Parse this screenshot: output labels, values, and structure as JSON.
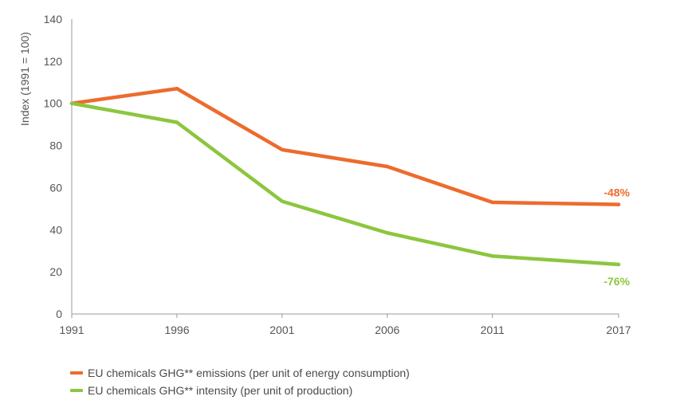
{
  "chart_data": {
    "type": "line",
    "title": "",
    "xlabel": "",
    "ylabel": "Index (1991 = 100)",
    "ylim": [
      0,
      140
    ],
    "yticks": [
      0,
      20,
      40,
      60,
      80,
      100,
      120,
      140
    ],
    "xlim": [
      1991,
      2017
    ],
    "xticks": [
      1991,
      1996,
      2001,
      2006,
      2011,
      2017
    ],
    "grid": false,
    "legend_position": "bottom-left",
    "series": [
      {
        "name": "EU chemicals GHG** emissions (per unit of energy consumption)",
        "color": "#ed6b2d",
        "x": [
          1991,
          1996,
          2001,
          2006,
          2011,
          2017
        ],
        "values": [
          100,
          107,
          78,
          70,
          53,
          52
        ],
        "end_label": "-48%"
      },
      {
        "name": "EU chemicals GHG** intensity (per unit of production)",
        "color": "#8cc63f",
        "x": [
          1991,
          1996,
          2001,
          2006,
          2011,
          2017
        ],
        "values": [
          100,
          91,
          53.5,
          38.5,
          27.5,
          23.5
        ],
        "end_label": "-76%"
      }
    ]
  }
}
